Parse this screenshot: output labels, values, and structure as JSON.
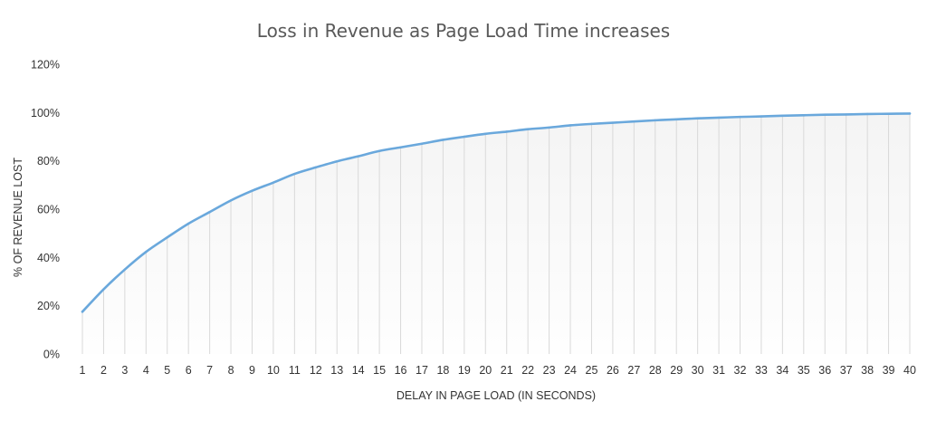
{
  "chart_data": {
    "type": "area",
    "title": "Loss in Revenue as Page Load Time increases",
    "xlabel": "DELAY IN PAGE LOAD (IN SECONDS)",
    "ylabel": "% OF REVENUE LOST",
    "x": [
      1,
      2,
      3,
      4,
      5,
      6,
      7,
      8,
      9,
      10,
      11,
      12,
      13,
      14,
      15,
      16,
      17,
      18,
      19,
      20,
      21,
      22,
      23,
      24,
      25,
      26,
      27,
      28,
      29,
      30,
      31,
      32,
      33,
      34,
      35,
      36,
      37,
      38,
      39,
      40
    ],
    "x_tick_labels": [
      "1",
      "2",
      "3",
      "4",
      "5",
      "6",
      "7",
      "8",
      "9",
      "10",
      "11",
      "12",
      "13",
      "14",
      "15",
      "16",
      "17",
      "18",
      "19",
      "20",
      "21",
      "22",
      "23",
      "24",
      "25",
      "26",
      "27",
      "28",
      "29",
      "30",
      "31",
      "32",
      "33",
      "34",
      "35",
      "36",
      "37",
      "38",
      "39",
      "40"
    ],
    "series": [
      {
        "values": [
          17.5,
          26.8,
          35.0,
          42.3,
          48.3,
          54.0,
          58.8,
          63.6,
          67.6,
          71.0,
          74.6,
          77.3,
          79.8,
          81.9,
          84.1,
          85.6,
          87.1,
          88.7,
          90.0,
          91.2,
          92.1,
          93.1,
          93.8,
          94.7,
          95.3,
          95.8,
          96.3,
          96.8,
          97.2,
          97.6,
          97.9,
          98.2,
          98.4,
          98.7,
          98.9,
          99.1,
          99.2,
          99.4,
          99.5,
          99.6
        ]
      }
    ],
    "y_tick_labels": [
      "0%",
      "20%",
      "40%",
      "60%",
      "80%",
      "100%",
      "120%"
    ],
    "ylim": [
      0,
      120
    ],
    "y_ticks": [
      0,
      20,
      40,
      60,
      80,
      100,
      120
    ],
    "grid": "vertical drop lines",
    "legend": "none",
    "colors": {
      "line": "#6aa8dc",
      "fill_top": "#f4f4f4",
      "fill_bottom": "#fefefe",
      "drop_lines": "#d9d9d9",
      "text": "#333333",
      "title": "#595959"
    }
  }
}
